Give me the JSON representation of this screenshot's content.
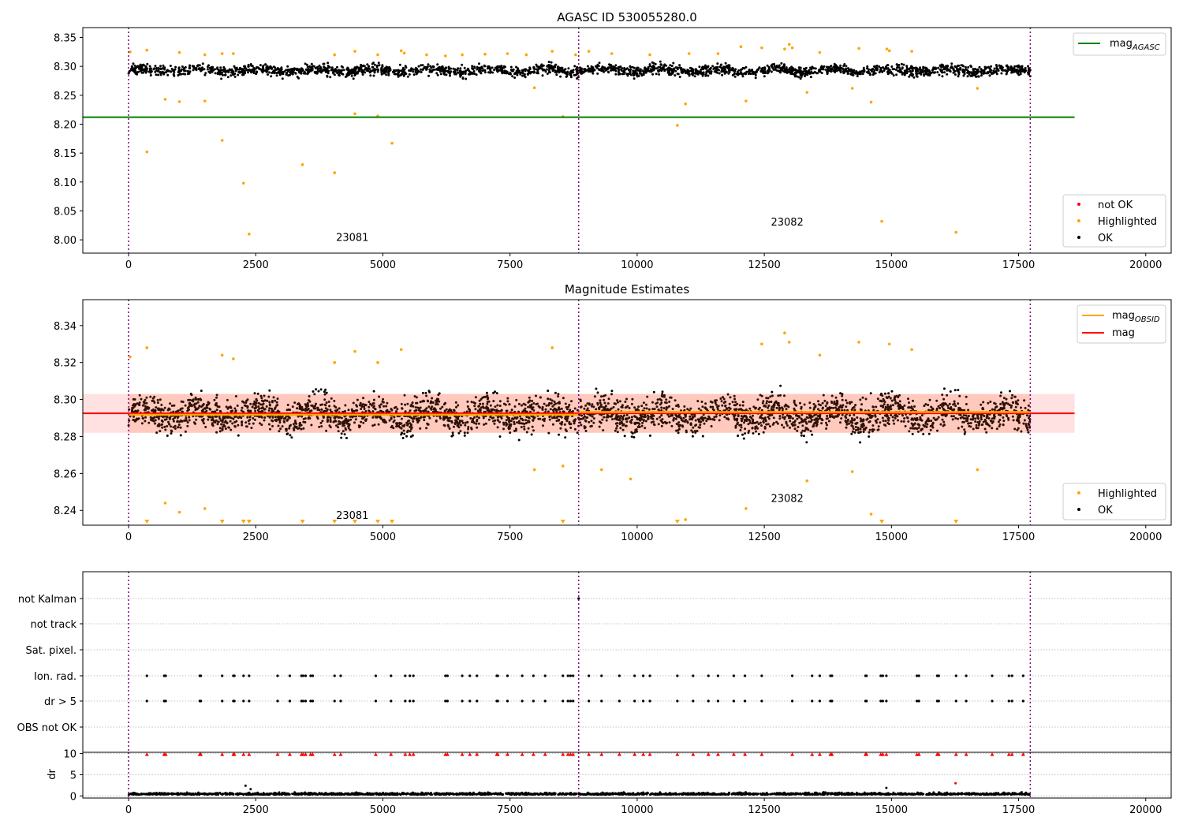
{
  "figure": {
    "background": "#ffffff"
  },
  "colors": {
    "ok": "#000000",
    "highlighted": "#ffa500",
    "not_ok": "#ff0000",
    "mag_agasc": "#008000",
    "mag_obsid": "#ffa500",
    "mag": "#ff0000",
    "band_fill": "#ffdada",
    "obs_boundary": "#800080",
    "grid": "#b0b0b0"
  },
  "chart_data": [
    {
      "type": "scatter",
      "title": "AGASC ID 530055280.0",
      "xlabel": "",
      "ylabel": "",
      "xlim": [
        -900,
        20500
      ],
      "ylim": [
        7.977,
        8.367
      ],
      "xticks": [
        0,
        2500,
        5000,
        7500,
        10000,
        12500,
        15000,
        17500,
        20000
      ],
      "xtick_labels": [
        "0",
        "2500",
        "5000",
        "7500",
        "10000",
        "12500",
        "15000",
        "17500",
        "20000"
      ],
      "yticks": [
        8.0,
        8.05,
        8.1,
        8.15,
        8.2,
        8.25,
        8.3,
        8.35
      ],
      "ytick_labels": [
        "8.00",
        "8.05",
        "8.10",
        "8.15",
        "8.20",
        "8.25",
        "8.30",
        "8.35"
      ],
      "obs_boundaries": [
        0,
        8850,
        17730
      ],
      "lines": [
        {
          "name": "mag",
          "sub": "AGASC",
          "y": 8.212,
          "x_range": [
            -900,
            18600
          ],
          "color": "#008000"
        }
      ],
      "ok_band": {
        "center": 8.293,
        "spread": 0.008,
        "min": 8.27,
        "max": 8.318,
        "n_points": 2400
      },
      "highlighted": {
        "x": [
          360,
          720,
          1000,
          1500,
          1840,
          2260,
          2370,
          3420,
          4050,
          4450,
          4900,
          5180,
          7980,
          8540,
          10790,
          10950,
          12140,
          13340,
          14230,
          14600,
          14810,
          16270,
          16690
        ],
        "y": [
          8.152,
          8.243,
          8.239,
          8.24,
          8.172,
          8.098,
          8.01,
          8.13,
          8.116,
          8.218,
          8.214,
          8.167,
          8.263,
          8.213,
          8.198,
          8.235,
          8.24,
          8.255,
          8.262,
          8.238,
          8.032,
          8.013,
          8.262
        ]
      },
      "highlighted_top": {
        "x": [
          30,
          360,
          1000,
          1500,
          1840,
          2060,
          4050,
          4450,
          4900,
          5360,
          5420,
          5860,
          6230,
          6560,
          7010,
          7450,
          7820,
          8330,
          8790,
          9050,
          9500,
          10250,
          11020,
          11590,
          12040,
          12450,
          12900,
          12990,
          13050,
          13590,
          14360,
          14910,
          14960,
          15400
        ],
        "y": [
          8.325,
          8.328,
          8.324,
          8.32,
          8.322,
          8.322,
          8.32,
          8.326,
          8.32,
          8.327,
          8.323,
          8.32,
          8.318,
          8.32,
          8.321,
          8.322,
          8.32,
          8.326,
          8.32,
          8.326,
          8.322,
          8.32,
          8.322,
          8.322,
          8.334,
          8.332,
          8.33,
          8.338,
          8.332,
          8.324,
          8.331,
          8.33,
          8.327,
          8.326
        ]
      },
      "annotations": [
        {
          "text": "23081",
          "x": 4400,
          "y": 7.998
        },
        {
          "text": "23082",
          "x": 12950,
          "y": 8.025
        }
      ],
      "legend_lines": {
        "placement": "upper right",
        "entries": [
          {
            "name": "mag",
            "sub": "AGASC",
            "color": "#008000"
          }
        ]
      },
      "legend_points": {
        "placement": "lower right",
        "entries": [
          {
            "name": "not OK",
            "color": "#ff0000"
          },
          {
            "name": "Highlighted",
            "color": "#ffa500"
          },
          {
            "name": "OK",
            "color": "#000000"
          }
        ]
      }
    },
    {
      "type": "scatter",
      "title": "Magnitude Estimates",
      "xlabel": "",
      "ylabel": "",
      "xlim": [
        -900,
        20500
      ],
      "ylim": [
        8.232,
        8.354
      ],
      "xticks": [
        0,
        2500,
        5000,
        7500,
        10000,
        12500,
        15000,
        17500,
        20000
      ],
      "xtick_labels": [
        "0",
        "2500",
        "5000",
        "7500",
        "10000",
        "12500",
        "15000",
        "17500",
        "20000"
      ],
      "yticks": [
        8.24,
        8.26,
        8.28,
        8.3,
        8.32,
        8.34
      ],
      "ytick_labels": [
        "8.24",
        "8.26",
        "8.28",
        "8.30",
        "8.32",
        "8.34"
      ],
      "obs_boundaries": [
        0,
        8850,
        17730
      ],
      "band": {
        "ymin": 8.282,
        "ymax": 8.303,
        "x_range": [
          -900,
          18600
        ]
      },
      "lines": [
        {
          "name": "mag",
          "y": 8.2925,
          "x_range": [
            -900,
            18600
          ],
          "color": "#ff0000"
        },
        {
          "name": "mag",
          "sub": "OBSID",
          "segments": [
            {
              "x0": 0,
              "x1": 8850,
              "y": 8.2917
            },
            {
              "x0": 8850,
              "x1": 17730,
              "y": 8.2932
            }
          ],
          "color": "#ffa500"
        }
      ],
      "ok_band": {
        "center": 8.292,
        "spread": 0.008,
        "min": 8.262,
        "max": 8.325,
        "n_points": 3200
      },
      "highlighted": {
        "x": [
          30,
          360,
          720,
          1000,
          1500,
          1840,
          2060,
          4050,
          4450,
          4900,
          5360,
          7980,
          8330,
          8540,
          9300,
          9870,
          10950,
          12140,
          12450,
          12900,
          12990,
          13340,
          13590,
          14230,
          14360,
          14600,
          14960,
          15400,
          16690
        ],
        "y": [
          8.323,
          8.328,
          8.244,
          8.239,
          8.241,
          8.324,
          8.322,
          8.32,
          8.326,
          8.32,
          8.327,
          8.262,
          8.328,
          8.264,
          8.262,
          8.257,
          8.235,
          8.241,
          8.33,
          8.336,
          8.331,
          8.256,
          8.324,
          8.261,
          8.331,
          8.238,
          8.33,
          8.327,
          8.262
        ]
      },
      "below_limit_markers": {
        "x": [
          360,
          1840,
          2260,
          2370,
          3420,
          4050,
          4450,
          4900,
          5180,
          8540,
          10790,
          14810,
          16270
        ]
      },
      "annotations": [
        {
          "text": "23081",
          "x": 4400,
          "y": 8.2355
        },
        {
          "text": "23082",
          "x": 12950,
          "y": 8.2445
        }
      ],
      "legend_lines": {
        "placement": "upper right",
        "entries": [
          {
            "name": "mag",
            "sub": "OBSID",
            "color": "#ffa500"
          },
          {
            "name": "mag",
            "color": "#ff0000"
          }
        ]
      },
      "legend_points": {
        "placement": "lower right",
        "entries": [
          {
            "name": "Highlighted",
            "color": "#ffa500"
          },
          {
            "name": "OK",
            "color": "#000000"
          }
        ]
      }
    },
    {
      "type": "scatter",
      "title": "",
      "xlabel": "",
      "ylabel": "",
      "xlim": [
        -900,
        20500
      ],
      "categories": [
        "not Kalman",
        "not track",
        "Sat. pixel.",
        "Ion. rad.",
        "dr > 5",
        "OBS not OK"
      ],
      "obs_boundaries": [
        0,
        8850,
        17730
      ],
      "flag_times": [
        360,
        700,
        730,
        1400,
        1420,
        1840,
        2060,
        2080,
        2260,
        2370,
        2930,
        3170,
        3400,
        3430,
        3480,
        3580,
        3620,
        4050,
        4170,
        4860,
        5160,
        5440,
        5530,
        5600,
        6230,
        6270,
        6560,
        6710,
        6850,
        7240,
        7260,
        7450,
        7740,
        7960,
        8190,
        8540,
        8640,
        8690,
        8740,
        9050,
        9300,
        9650,
        9950,
        10120,
        10250,
        10790,
        11100,
        11400,
        11590,
        11900,
        12120,
        12450,
        13050,
        13440,
        13590,
        13800,
        13830,
        14490,
        14510,
        14790,
        14830,
        14900,
        15500,
        15540,
        15900,
        15930,
        16270,
        16470,
        16980,
        17310,
        17370,
        17590
      ],
      "flags": {
        "Ion. rad.": "all",
        "dr > 5": "all",
        "not Kalman": [
          8850
        ]
      }
    },
    {
      "type": "scatter",
      "title": "",
      "xlabel": "",
      "ylabel": "dr",
      "xlim": [
        -900,
        20500
      ],
      "ylim": [
        -0.5,
        10.3
      ],
      "xticks": [
        0,
        2500,
        5000,
        7500,
        10000,
        12500,
        15000,
        17500,
        20000
      ],
      "xtick_labels": [
        "0",
        "2500",
        "5000",
        "7500",
        "10000",
        "12500",
        "15000",
        "17500",
        "20000"
      ],
      "yticks": [
        0,
        5,
        10
      ],
      "ytick_labels": [
        "0",
        "5",
        "10"
      ],
      "obs_boundaries": [
        0,
        8850,
        17730
      ],
      "ok_band": {
        "center": 0.3,
        "spread": 0.2,
        "min": 0.0,
        "max": 0.9,
        "n_points": 2200
      },
      "outliers": {
        "x": [
          2300,
          2400,
          14900,
          16260
        ],
        "y": [
          2.4,
          1.6,
          1.9,
          3.0
        ]
      },
      "clipped_markers": {
        "y": 10,
        "color": "#ff0000"
      }
    }
  ]
}
